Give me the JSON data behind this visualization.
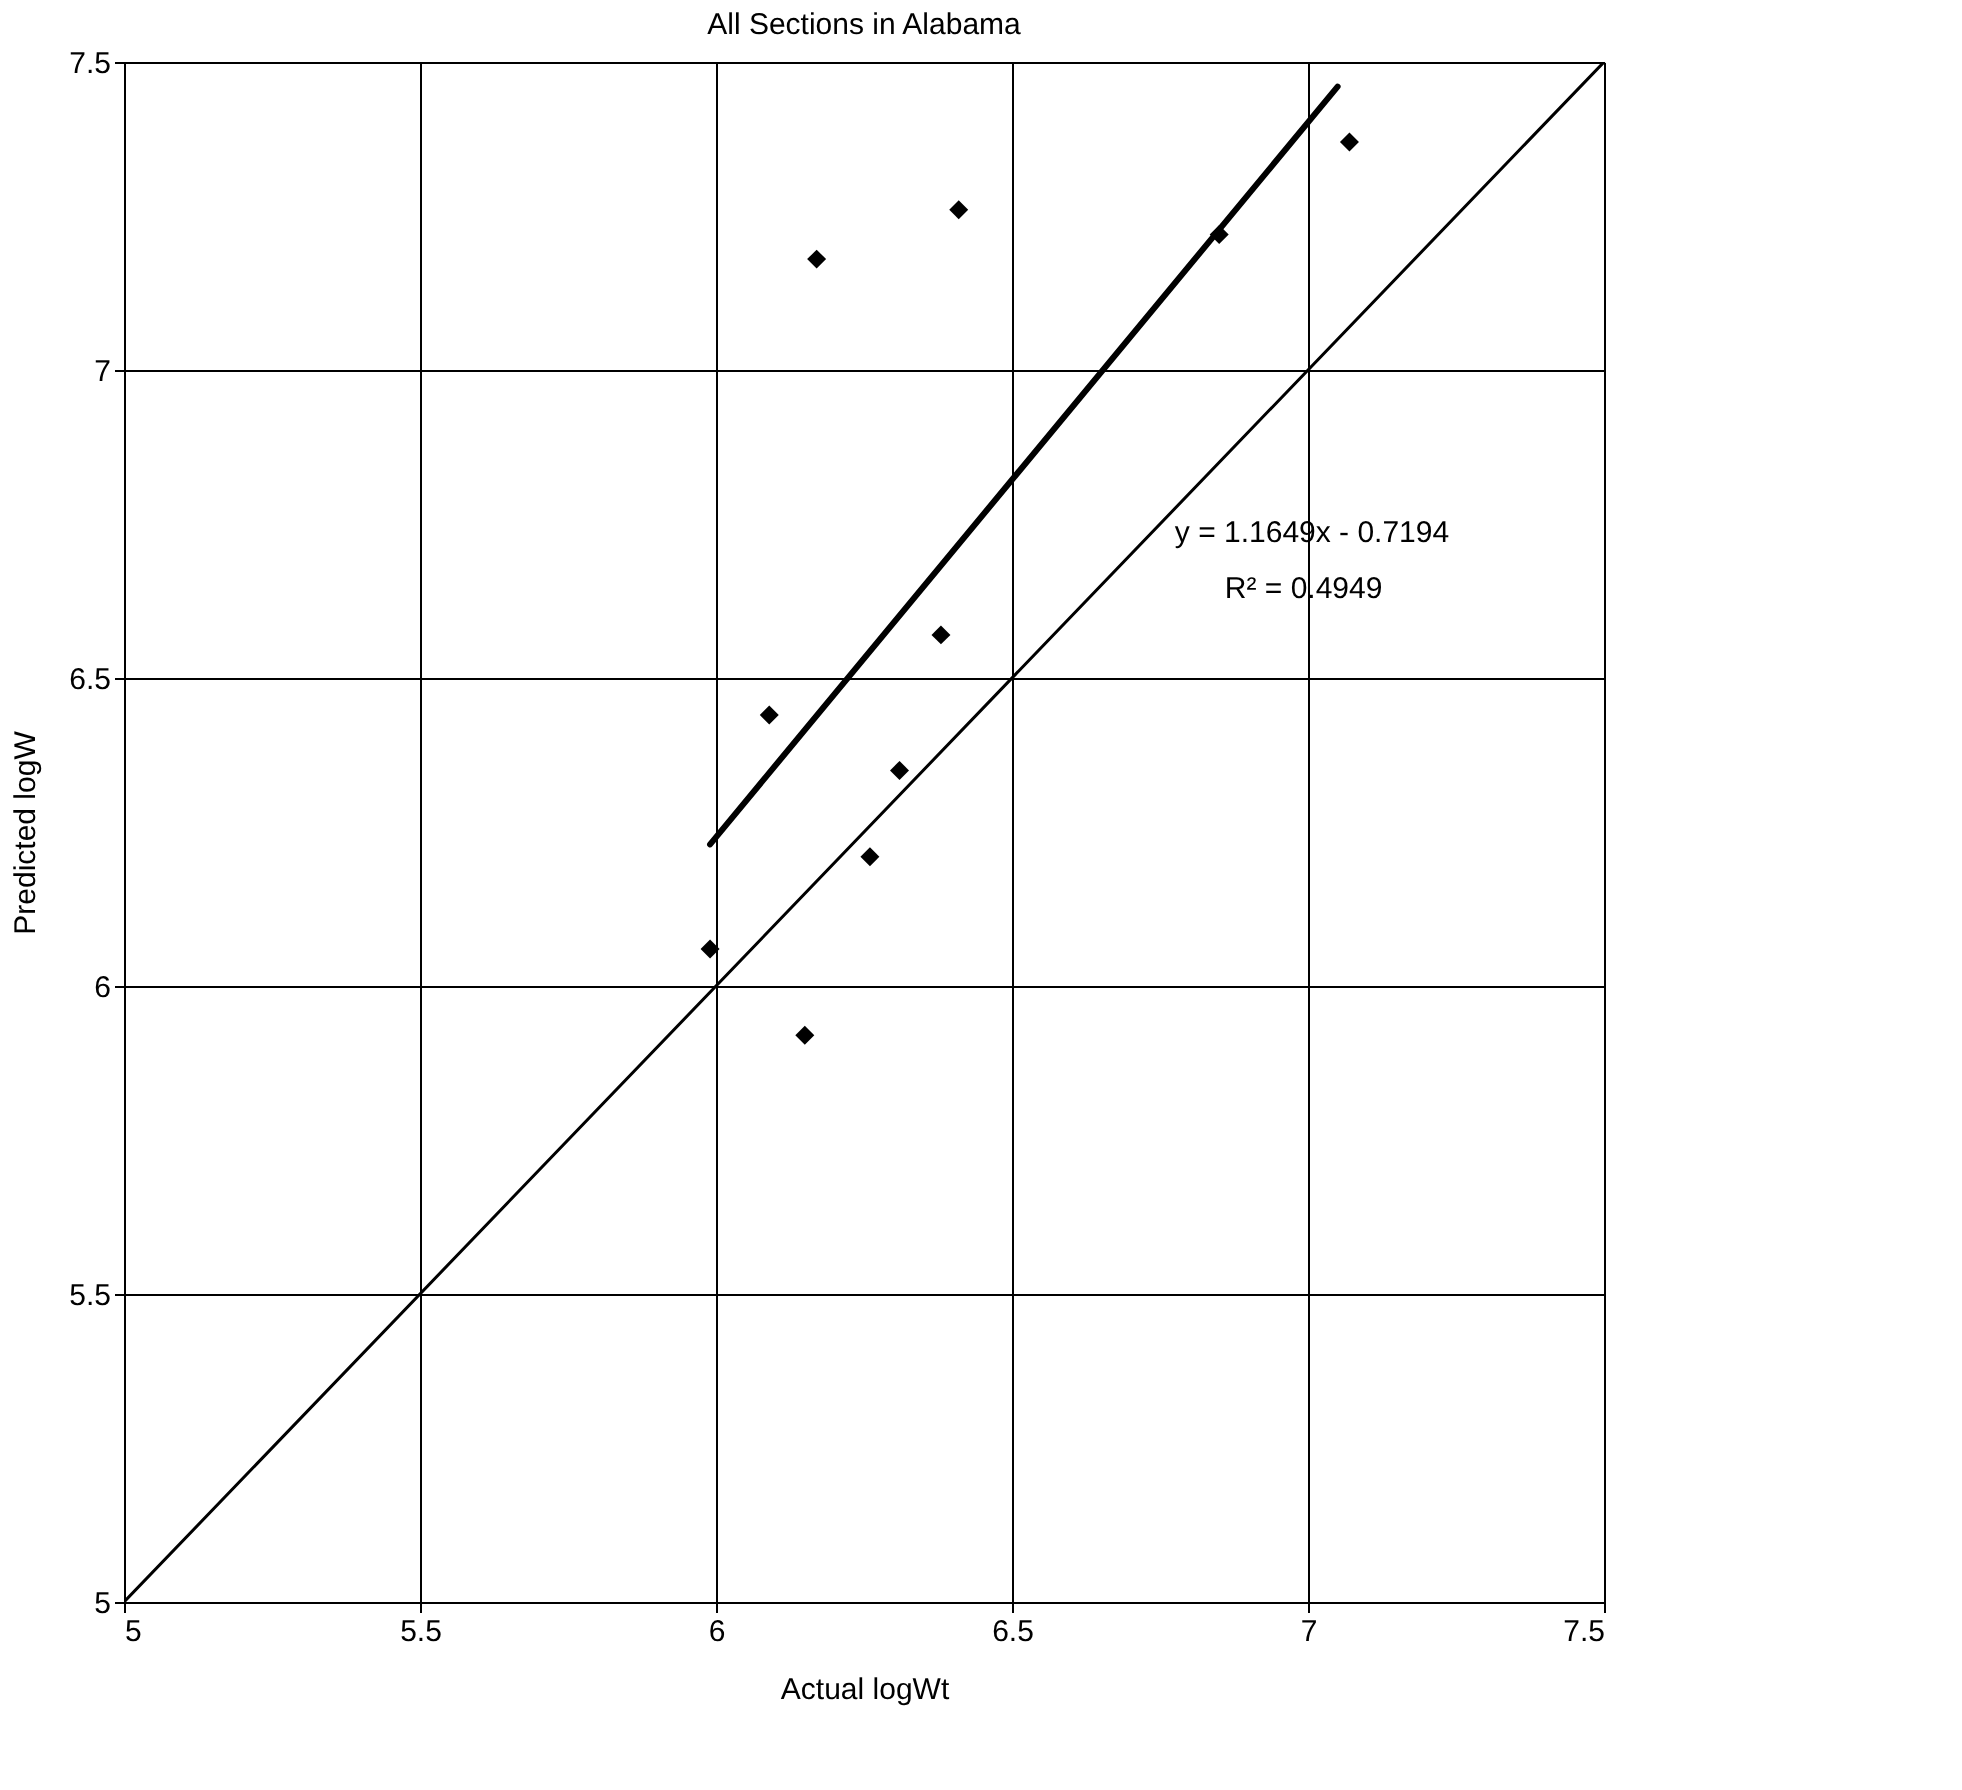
{
  "chart_data": {
    "type": "scatter",
    "title": "All Sections in Alabama",
    "xlabel": "Actual logWt",
    "ylabel": "Predicted logW",
    "xlim": [
      5,
      7.5
    ],
    "ylim": [
      5,
      7.5
    ],
    "xticks": [
      5,
      5.5,
      6,
      6.5,
      7,
      7.5
    ],
    "yticks": [
      5,
      5.5,
      6,
      6.5,
      7,
      7.5
    ],
    "grid": true,
    "series": [
      {
        "marker": "diamond",
        "color": "#000000",
        "x": [
          5.99,
          6.09,
          6.15,
          6.17,
          6.26,
          6.31,
          6.38,
          6.41,
          6.85,
          7.07
        ],
        "values": [
          6.06,
          6.44,
          5.92,
          7.18,
          6.21,
          6.35,
          6.57,
          7.26,
          7.22,
          7.37
        ]
      },
      {
        "type": "line",
        "color": "#000000",
        "x": [
          5.99,
          7.05
        ],
        "values": [
          6.23,
          7.46
        ]
      },
      {
        "type": "line",
        "color": "#000000",
        "x": [
          5,
          7.5
        ],
        "values": [
          5,
          7.5
        ]
      }
    ],
    "annotations": [
      "y = 1.1649x - 0.7194",
      "R² = 0.4949"
    ]
  }
}
